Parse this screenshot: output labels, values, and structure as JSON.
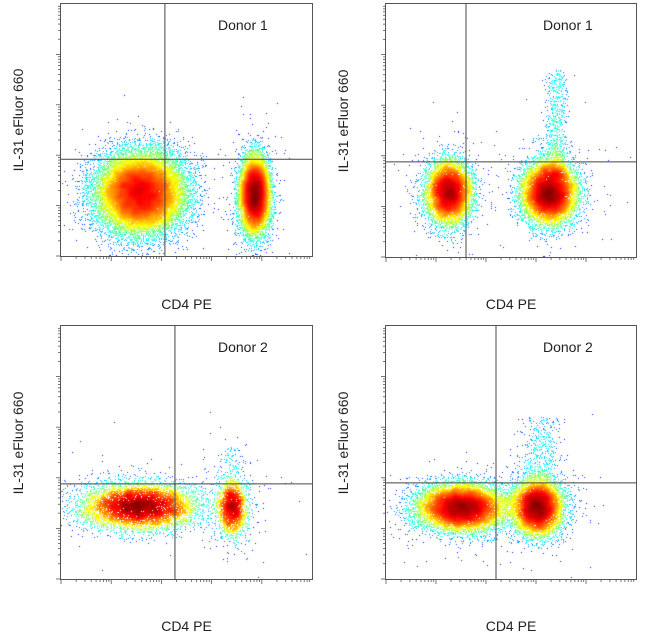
{
  "chart_data": [
    {
      "type": "scatter",
      "subtype": "flow-cytometry-density",
      "title": "Donor 1",
      "xlabel": "CD4 PE",
      "ylabel": "IL-31 eFluor 660",
      "x_scale": "log",
      "y_scale": "log",
      "xlim_decades": [
        0,
        5
      ],
      "ylim_decades": [
        0,
        5
      ],
      "gate": {
        "x": 2.07,
        "y": 1.92
      },
      "populations": [
        {
          "cx": 1.58,
          "cy": 1.26,
          "sx": 0.42,
          "sy": 0.38,
          "n": 26000
        },
        {
          "cx": 3.85,
          "cy": 1.22,
          "sx": 0.14,
          "sy": 0.36,
          "n": 14000
        }
      ],
      "streak": null,
      "colormap": "jet"
    },
    {
      "type": "scatter",
      "subtype": "flow-cytometry-density",
      "title": "Donor 1",
      "xlabel": "CD4 PE",
      "ylabel": "IL-31 eFluor 660",
      "x_scale": "log",
      "y_scale": "log",
      "xlim_decades": [
        0,
        5
      ],
      "ylim_decades": [
        0,
        5
      ],
      "gate": {
        "x": 1.6,
        "y": 1.88
      },
      "populations": [
        {
          "cx": 1.25,
          "cy": 1.28,
          "sx": 0.22,
          "sy": 0.3,
          "n": 9000
        },
        {
          "cx": 3.26,
          "cy": 1.28,
          "sx": 0.26,
          "sy": 0.3,
          "n": 12000
        }
      ],
      "streak": {
        "cx": 3.4,
        "sx": 0.12,
        "ymax": 3.7,
        "n": 900
      },
      "colormap": "jet"
    },
    {
      "type": "scatter",
      "subtype": "flow-cytometry-density",
      "title": "Donor 2",
      "xlabel": "CD4 PE",
      "ylabel": "IL-31 eFluor 660",
      "x_scale": "log",
      "y_scale": "log",
      "xlim_decades": [
        0,
        5
      ],
      "ylim_decades": [
        0,
        5
      ],
      "gate": {
        "x": 2.27,
        "y": 1.88
      },
      "populations": [
        {
          "cx": 1.55,
          "cy": 1.44,
          "sx": 0.55,
          "sy": 0.22,
          "n": 9000
        },
        {
          "cx": 3.4,
          "cy": 1.42,
          "sx": 0.14,
          "sy": 0.26,
          "n": 2500
        }
      ],
      "streak": {
        "cx": 3.4,
        "sx": 0.12,
        "ymax": 2.6,
        "n": 150
      },
      "colormap": "jet"
    },
    {
      "type": "scatter",
      "subtype": "flow-cytometry-density",
      "title": "Donor 2",
      "xlabel": "CD4 PE",
      "ylabel": "IL-31 eFluor 660",
      "x_scale": "log",
      "y_scale": "log",
      "xlim_decades": [
        0,
        5
      ],
      "ylim_decades": [
        0,
        5
      ],
      "gate": {
        "x": 2.2,
        "y": 1.9
      },
      "populations": [
        {
          "cx": 1.5,
          "cy": 1.42,
          "sx": 0.42,
          "sy": 0.22,
          "n": 14000
        },
        {
          "cx": 3.02,
          "cy": 1.42,
          "sx": 0.24,
          "sy": 0.26,
          "n": 10000
        }
      ],
      "streak": {
        "cx": 3.1,
        "sx": 0.2,
        "ymax": 3.2,
        "n": 700
      },
      "colormap": "jet"
    }
  ]
}
